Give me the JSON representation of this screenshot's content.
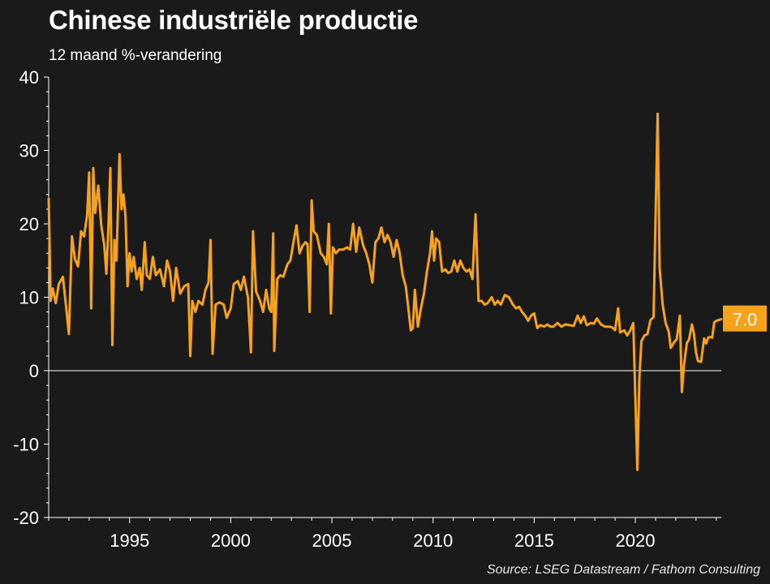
{
  "header": {
    "title": "Chinese industriële productie",
    "subtitle": "12 maand %-verandering"
  },
  "footer": {
    "source": "Source: LSEG Datastream / Fathom Consulting"
  },
  "colors": {
    "background": "#1a1a1a",
    "series": "#f7a21b",
    "zero_line": "#ffffff"
  },
  "chart_data": {
    "type": "line",
    "title": "Chinese industriële productie",
    "subtitle": "12 maand %-verandering",
    "xlabel": "",
    "ylabel": "",
    "xlim": [
      1991.0,
      2024.25
    ],
    "ylim": [
      -20,
      40
    ],
    "y_ticks": [
      40,
      30,
      20,
      10,
      0,
      -10,
      -20
    ],
    "x_ticks": [
      1995,
      2000,
      2005,
      2010,
      2015,
      2020
    ],
    "grid": false,
    "legend": "none",
    "end_label": "7.0",
    "series": [
      {
        "values": [
          [
            1991.0,
            23.4
          ],
          [
            1991.1,
            9.5
          ],
          [
            1991.2,
            11.2
          ],
          [
            1991.35,
            9.2
          ],
          [
            1991.5,
            11.8
          ],
          [
            1991.7,
            12.8
          ],
          [
            1991.85,
            9.0
          ],
          [
            1992.0,
            5.0
          ],
          [
            1992.15,
            18.3
          ],
          [
            1992.3,
            15.2
          ],
          [
            1992.45,
            14.2
          ],
          [
            1992.6,
            19.0
          ],
          [
            1992.75,
            18.3
          ],
          [
            1992.9,
            21.2
          ],
          [
            1993.0,
            27.0
          ],
          [
            1993.1,
            8.5
          ],
          [
            1993.2,
            27.6
          ],
          [
            1993.3,
            21.5
          ],
          [
            1993.45,
            25.2
          ],
          [
            1993.6,
            19.8
          ],
          [
            1993.75,
            17.0
          ],
          [
            1993.85,
            13.2
          ],
          [
            1993.95,
            19.5
          ],
          [
            1994.05,
            27.6
          ],
          [
            1994.15,
            3.5
          ],
          [
            1994.25,
            17.8
          ],
          [
            1994.35,
            15.0
          ],
          [
            1994.5,
            29.5
          ],
          [
            1994.6,
            22.0
          ],
          [
            1994.7,
            24.0
          ],
          [
            1994.8,
            21.0
          ],
          [
            1994.9,
            11.5
          ],
          [
            1995.0,
            16.0
          ],
          [
            1995.1,
            13.5
          ],
          [
            1995.2,
            15.5
          ],
          [
            1995.35,
            12.5
          ],
          [
            1995.5,
            14.0
          ],
          [
            1995.6,
            11.0
          ],
          [
            1995.75,
            17.5
          ],
          [
            1995.85,
            13.0
          ],
          [
            1996.0,
            12.5
          ],
          [
            1996.15,
            15.5
          ],
          [
            1996.3,
            13.0
          ],
          [
            1996.5,
            13.8
          ],
          [
            1996.7,
            11.5
          ],
          [
            1996.85,
            15.0
          ],
          [
            1997.0,
            13.5
          ],
          [
            1997.15,
            9.5
          ],
          [
            1997.3,
            14.0
          ],
          [
            1997.5,
            10.5
          ],
          [
            1997.7,
            11.5
          ],
          [
            1997.9,
            11.8
          ],
          [
            1998.0,
            2.0
          ],
          [
            1998.1,
            9.5
          ],
          [
            1998.25,
            8.0
          ],
          [
            1998.4,
            9.5
          ],
          [
            1998.6,
            9.0
          ],
          [
            1998.75,
            11.0
          ],
          [
            1998.9,
            12.0
          ],
          [
            1999.0,
            17.8
          ],
          [
            1999.1,
            2.3
          ],
          [
            1999.25,
            9.0
          ],
          [
            1999.45,
            9.3
          ],
          [
            1999.65,
            9.0
          ],
          [
            1999.8,
            7.2
          ],
          [
            2000.0,
            8.5
          ],
          [
            2000.15,
            11.8
          ],
          [
            2000.35,
            12.2
          ],
          [
            2000.5,
            11.0
          ],
          [
            2000.65,
            12.8
          ],
          [
            2000.85,
            10.0
          ],
          [
            2001.0,
            2.5
          ],
          [
            2001.1,
            19.0
          ],
          [
            2001.25,
            10.8
          ],
          [
            2001.45,
            9.5
          ],
          [
            2001.6,
            8.0
          ],
          [
            2001.75,
            11.0
          ],
          [
            2001.9,
            8.5
          ],
          [
            2002.0,
            8.0
          ],
          [
            2002.1,
            18.7
          ],
          [
            2002.15,
            2.7
          ],
          [
            2002.3,
            12.5
          ],
          [
            2002.45,
            13.0
          ],
          [
            2002.6,
            12.8
          ],
          [
            2002.8,
            14.5
          ],
          [
            2002.95,
            15.0
          ],
          [
            2003.1,
            17.5
          ],
          [
            2003.25,
            19.8
          ],
          [
            2003.4,
            16.0
          ],
          [
            2003.55,
            17.0
          ],
          [
            2003.7,
            17.5
          ],
          [
            2003.8,
            17.2
          ],
          [
            2003.9,
            8.0
          ],
          [
            2004.0,
            23.2
          ],
          [
            2004.1,
            19.0
          ],
          [
            2004.25,
            18.5
          ],
          [
            2004.45,
            16.0
          ],
          [
            2004.6,
            15.5
          ],
          [
            2004.75,
            14.5
          ],
          [
            2004.85,
            20.0
          ],
          [
            2004.95,
            7.8
          ],
          [
            2005.05,
            16.8
          ],
          [
            2005.2,
            16.0
          ],
          [
            2005.35,
            16.5
          ],
          [
            2005.55,
            16.5
          ],
          [
            2005.75,
            16.8
          ],
          [
            2005.9,
            16.5
          ],
          [
            2006.05,
            20.0
          ],
          [
            2006.2,
            16.2
          ],
          [
            2006.35,
            19.5
          ],
          [
            2006.55,
            17.0
          ],
          [
            2006.7,
            16.0
          ],
          [
            2006.85,
            14.5
          ],
          [
            2007.0,
            12.0
          ],
          [
            2007.15,
            17.5
          ],
          [
            2007.3,
            18.0
          ],
          [
            2007.45,
            19.5
          ],
          [
            2007.6,
            17.5
          ],
          [
            2007.75,
            18.5
          ],
          [
            2007.9,
            17.5
          ],
          [
            2008.05,
            15.5
          ],
          [
            2008.2,
            17.8
          ],
          [
            2008.35,
            16.0
          ],
          [
            2008.5,
            13.0
          ],
          [
            2008.65,
            11.5
          ],
          [
            2008.8,
            8.0
          ],
          [
            2008.9,
            5.5
          ],
          [
            2009.0,
            5.8
          ],
          [
            2009.1,
            11.0
          ],
          [
            2009.25,
            6.0
          ],
          [
            2009.4,
            8.5
          ],
          [
            2009.55,
            10.5
          ],
          [
            2009.7,
            13.5
          ],
          [
            2009.85,
            16.0
          ],
          [
            2009.95,
            19.0
          ],
          [
            2010.05,
            15.0
          ],
          [
            2010.15,
            18.0
          ],
          [
            2010.3,
            17.5
          ],
          [
            2010.45,
            13.5
          ],
          [
            2010.6,
            13.8
          ],
          [
            2010.75,
            13.3
          ],
          [
            2010.9,
            13.5
          ],
          [
            2011.05,
            15.0
          ],
          [
            2011.2,
            13.5
          ],
          [
            2011.35,
            15.0
          ],
          [
            2011.5,
            14.0
          ],
          [
            2011.65,
            13.5
          ],
          [
            2011.8,
            13.8
          ],
          [
            2011.95,
            12.5
          ],
          [
            2012.1,
            21.3
          ],
          [
            2012.25,
            9.5
          ],
          [
            2012.4,
            9.5
          ],
          [
            2012.55,
            9.0
          ],
          [
            2012.7,
            9.2
          ],
          [
            2012.9,
            10.0
          ],
          [
            2013.05,
            9.0
          ],
          [
            2013.2,
            9.5
          ],
          [
            2013.35,
            9.0
          ],
          [
            2013.55,
            10.3
          ],
          [
            2013.75,
            10.0
          ],
          [
            2013.95,
            9.0
          ],
          [
            2014.1,
            8.5
          ],
          [
            2014.25,
            8.7
          ],
          [
            2014.4,
            8.0
          ],
          [
            2014.55,
            7.5
          ],
          [
            2014.7,
            6.8
          ],
          [
            2014.85,
            7.5
          ],
          [
            2015.0,
            7.8
          ],
          [
            2015.15,
            5.8
          ],
          [
            2015.3,
            6.2
          ],
          [
            2015.5,
            6.0
          ],
          [
            2015.65,
            6.3
          ],
          [
            2015.8,
            6.0
          ],
          [
            2015.95,
            6.0
          ],
          [
            2016.15,
            6.5
          ],
          [
            2016.35,
            6.0
          ],
          [
            2016.55,
            6.3
          ],
          [
            2016.75,
            6.2
          ],
          [
            2016.95,
            6.1
          ],
          [
            2017.15,
            7.5
          ],
          [
            2017.3,
            6.5
          ],
          [
            2017.45,
            7.4
          ],
          [
            2017.6,
            6.2
          ],
          [
            2017.8,
            6.5
          ],
          [
            2017.95,
            6.4
          ],
          [
            2018.1,
            7.1
          ],
          [
            2018.3,
            6.3
          ],
          [
            2018.5,
            6.0
          ],
          [
            2018.7,
            6.0
          ],
          [
            2018.85,
            5.9
          ],
          [
            2019.0,
            5.5
          ],
          [
            2019.15,
            8.5
          ],
          [
            2019.25,
            5.2
          ],
          [
            2019.45,
            5.5
          ],
          [
            2019.6,
            4.8
          ],
          [
            2019.75,
            5.5
          ],
          [
            2019.9,
            6.5
          ],
          [
            2020.1,
            -13.5
          ],
          [
            2020.2,
            -1.0
          ],
          [
            2020.3,
            4.0
          ],
          [
            2020.45,
            4.8
          ],
          [
            2020.6,
            5.0
          ],
          [
            2020.75,
            6.9
          ],
          [
            2020.9,
            7.3
          ],
          [
            2021.1,
            35.0
          ],
          [
            2021.2,
            14.0
          ],
          [
            2021.35,
            9.0
          ],
          [
            2021.5,
            6.5
          ],
          [
            2021.65,
            5.3
          ],
          [
            2021.75,
            3.1
          ],
          [
            2021.9,
            3.8
          ],
          [
            2022.05,
            4.3
          ],
          [
            2022.2,
            7.5
          ],
          [
            2022.3,
            -2.9
          ],
          [
            2022.4,
            0.7
          ],
          [
            2022.55,
            3.8
          ],
          [
            2022.65,
            4.2
          ],
          [
            2022.8,
            6.3
          ],
          [
            2022.9,
            5.0
          ],
          [
            2023.0,
            2.5
          ],
          [
            2023.1,
            1.3
          ],
          [
            2023.25,
            1.2
          ],
          [
            2023.4,
            4.4
          ],
          [
            2023.5,
            3.7
          ],
          [
            2023.6,
            4.5
          ],
          [
            2023.7,
            4.6
          ],
          [
            2023.8,
            4.5
          ],
          [
            2023.9,
            6.6
          ],
          [
            2024.0,
            6.8
          ],
          [
            2024.25,
            7.0
          ]
        ]
      }
    ]
  }
}
